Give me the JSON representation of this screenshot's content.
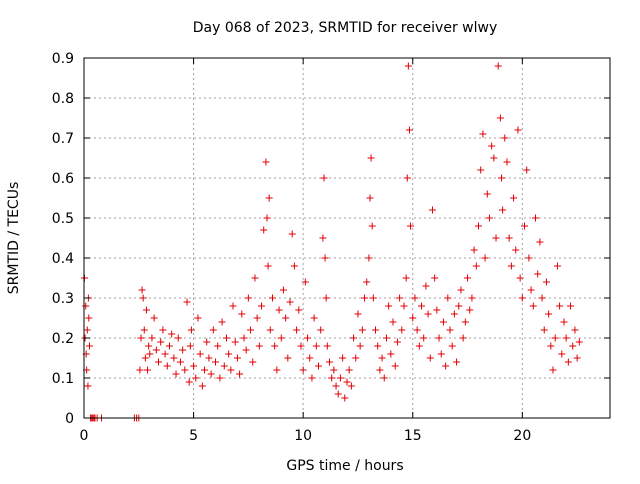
{
  "chart_data": {
    "type": "scatter",
    "title": "Day 068 of 2023, SRMTID for receiver wlwy",
    "xlabel": "GPS time / hours",
    "ylabel": "SRMTID / TECUs",
    "xlim": [
      0,
      24
    ],
    "ylim": [
      0,
      0.9
    ],
    "x_ticks": [
      0,
      5,
      10,
      15,
      20
    ],
    "y_ticks": [
      0,
      0.1,
      0.2,
      0.3,
      0.4,
      0.5,
      0.6,
      0.7,
      0.8,
      0.9
    ],
    "x_tick_labels": [
      "0",
      "5",
      "10",
      "15",
      "20"
    ],
    "y_tick_labels": [
      "0",
      "0.1",
      "0.2",
      "0.3",
      "0.4",
      "0.5",
      "0.6",
      "0.7",
      "0.8",
      "0.9"
    ],
    "grid": true,
    "marker": "+",
    "color": "#e00000",
    "series": [
      {
        "name": "SRMTID",
        "x": [
          0.02,
          0.05,
          0.08,
          0.1,
          0.12,
          0.15,
          0.18,
          0.2,
          0.22,
          0.25,
          0.3,
          0.35,
          0.4,
          0.45,
          0.5,
          0.6,
          0.8,
          2.3,
          2.4,
          2.5,
          2.55,
          2.6,
          2.65,
          2.7,
          2.75,
          2.8,
          2.85,
          2.9,
          2.95,
          3.0,
          3.1,
          3.2,
          3.3,
          3.4,
          3.5,
          3.6,
          3.7,
          3.8,
          3.9,
          4.0,
          4.1,
          4.2,
          4.3,
          4.4,
          4.5,
          4.6,
          4.7,
          4.8,
          4.85,
          4.9,
          5.0,
          5.1,
          5.2,
          5.3,
          5.4,
          5.5,
          5.6,
          5.7,
          5.8,
          5.9,
          6.0,
          6.1,
          6.2,
          6.3,
          6.4,
          6.5,
          6.6,
          6.7,
          6.8,
          6.9,
          7.0,
          7.1,
          7.2,
          7.3,
          7.4,
          7.5,
          7.6,
          7.7,
          7.8,
          7.9,
          8.0,
          8.1,
          8.2,
          8.3,
          8.35,
          8.4,
          8.45,
          8.5,
          8.6,
          8.7,
          8.8,
          8.9,
          9.0,
          9.1,
          9.2,
          9.3,
          9.4,
          9.5,
          9.6,
          9.7,
          9.8,
          9.9,
          10.0,
          10.1,
          10.2,
          10.3,
          10.4,
          10.5,
          10.6,
          10.7,
          10.8,
          10.9,
          10.95,
          11.0,
          11.05,
          11.1,
          11.2,
          11.3,
          11.4,
          11.5,
          11.6,
          11.7,
          11.8,
          11.9,
          12.0,
          12.1,
          12.2,
          12.3,
          12.4,
          12.5,
          12.6,
          12.7,
          12.8,
          12.9,
          13.0,
          13.05,
          13.1,
          13.15,
          13.2,
          13.3,
          13.4,
          13.5,
          13.6,
          13.7,
          13.8,
          13.9,
          14.0,
          14.1,
          14.2,
          14.3,
          14.4,
          14.5,
          14.6,
          14.7,
          14.75,
          14.8,
          14.85,
          14.9,
          15.0,
          15.1,
          15.2,
          15.3,
          15.4,
          15.5,
          15.6,
          15.7,
          15.8,
          15.9,
          16.0,
          16.1,
          16.2,
          16.3,
          16.4,
          16.5,
          16.6,
          16.7,
          16.8,
          16.9,
          17.0,
          17.1,
          17.2,
          17.3,
          17.4,
          17.5,
          17.6,
          17.7,
          17.8,
          17.9,
          18.0,
          18.1,
          18.2,
          18.3,
          18.4,
          18.5,
          18.6,
          18.7,
          18.8,
          18.9,
          19.0,
          19.05,
          19.1,
          19.2,
          19.3,
          19.4,
          19.5,
          19.6,
          19.7,
          19.8,
          19.9,
          20.0,
          20.1,
          20.2,
          20.3,
          20.4,
          20.5,
          20.6,
          20.7,
          20.8,
          20.9,
          21.0,
          21.1,
          21.2,
          21.3,
          21.4,
          21.5,
          21.6,
          21.7,
          21.8,
          21.9,
          22.0,
          22.1,
          22.2,
          22.3,
          22.4,
          22.5,
          22.6
        ],
        "y": [
          0.35,
          0.2,
          0.28,
          0.16,
          0.12,
          0.22,
          0.08,
          0.3,
          0.25,
          0.18,
          0.0,
          0.0,
          0.0,
          0.0,
          0.0,
          0.0,
          0.0,
          0.0,
          0.0,
          0.0,
          0.12,
          0.2,
          0.32,
          0.3,
          0.22,
          0.15,
          0.27,
          0.12,
          0.18,
          0.16,
          0.2,
          0.25,
          0.17,
          0.14,
          0.19,
          0.22,
          0.16,
          0.13,
          0.18,
          0.21,
          0.15,
          0.11,
          0.2,
          0.14,
          0.17,
          0.12,
          0.29,
          0.09,
          0.18,
          0.22,
          0.13,
          0.1,
          0.25,
          0.16,
          0.08,
          0.12,
          0.19,
          0.15,
          0.11,
          0.22,
          0.14,
          0.18,
          0.1,
          0.24,
          0.13,
          0.2,
          0.16,
          0.12,
          0.28,
          0.19,
          0.15,
          0.11,
          0.26,
          0.2,
          0.17,
          0.3,
          0.22,
          0.14,
          0.35,
          0.25,
          0.18,
          0.28,
          0.47,
          0.64,
          0.5,
          0.38,
          0.55,
          0.22,
          0.3,
          0.18,
          0.12,
          0.27,
          0.2,
          0.32,
          0.25,
          0.15,
          0.29,
          0.46,
          0.38,
          0.22,
          0.27,
          0.18,
          0.12,
          0.34,
          0.2,
          0.15,
          0.1,
          0.25,
          0.18,
          0.13,
          0.22,
          0.45,
          0.6,
          0.4,
          0.3,
          0.18,
          0.14,
          0.1,
          0.12,
          0.08,
          0.06,
          0.1,
          0.15,
          0.05,
          0.09,
          0.12,
          0.08,
          0.2,
          0.15,
          0.26,
          0.18,
          0.22,
          0.3,
          0.34,
          0.4,
          0.55,
          0.65,
          0.48,
          0.3,
          0.22,
          0.18,
          0.12,
          0.15,
          0.1,
          0.2,
          0.28,
          0.16,
          0.24,
          0.13,
          0.19,
          0.3,
          0.22,
          0.28,
          0.35,
          0.6,
          0.88,
          0.72,
          0.48,
          0.25,
          0.3,
          0.22,
          0.18,
          0.28,
          0.2,
          0.33,
          0.26,
          0.15,
          0.52,
          0.35,
          0.27,
          0.2,
          0.16,
          0.24,
          0.13,
          0.3,
          0.22,
          0.18,
          0.26,
          0.14,
          0.28,
          0.32,
          0.2,
          0.24,
          0.35,
          0.27,
          0.3,
          0.42,
          0.38,
          0.48,
          0.62,
          0.71,
          0.4,
          0.56,
          0.5,
          0.68,
          0.65,
          0.45,
          0.88,
          0.75,
          0.6,
          0.52,
          0.7,
          0.64,
          0.45,
          0.38,
          0.55,
          0.42,
          0.72,
          0.35,
          0.3,
          0.48,
          0.62,
          0.4,
          0.32,
          0.28,
          0.5,
          0.36,
          0.44,
          0.3,
          0.22,
          0.34,
          0.26,
          0.18,
          0.12,
          0.2,
          0.38,
          0.28,
          0.16,
          0.24,
          0.2,
          0.14,
          0.28,
          0.18,
          0.22,
          0.15,
          0.19
        ]
      }
    ]
  }
}
